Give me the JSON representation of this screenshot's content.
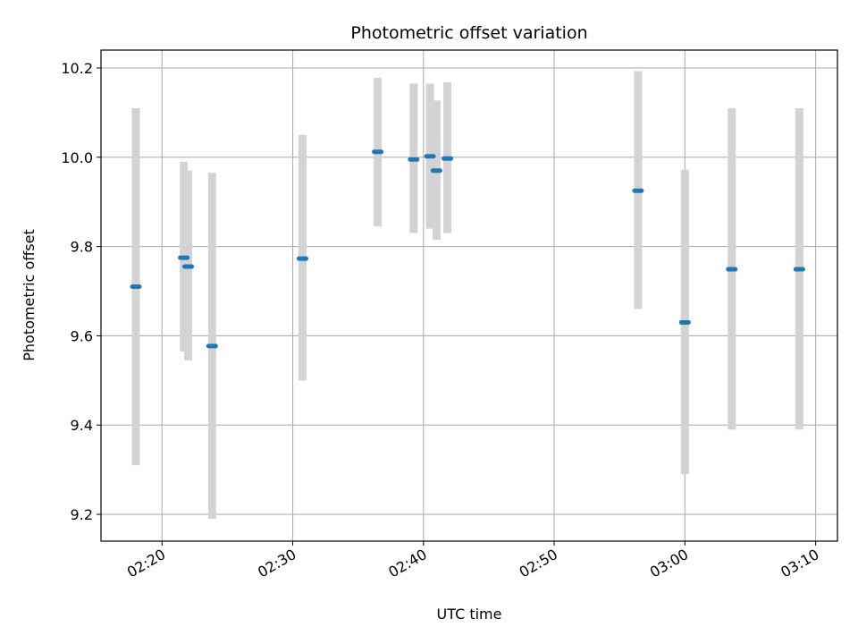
{
  "chart_data": {
    "type": "scatter",
    "title": "Photometric offset variation",
    "xlabel": "UTC time",
    "ylabel": "Photometric offset",
    "x_axis_type": "time",
    "xlim": [
      "02:15:20",
      "03:11:40"
    ],
    "ylim": [
      9.14,
      10.24
    ],
    "x_ticks": [
      "02:20",
      "02:30",
      "02:40",
      "02:50",
      "03:00",
      "03:10"
    ],
    "y_ticks": [
      9.2,
      9.4,
      9.6,
      9.8,
      10.0,
      10.2
    ],
    "y_tick_labels": [
      "9.2",
      "9.4",
      "9.6",
      "9.8",
      "10.0",
      "10.2"
    ],
    "grid": true,
    "marker_color": "#1f77b4",
    "errorbar_color": "#d3d3d3",
    "points": [
      {
        "x": "02:18:00",
        "y": 9.71,
        "ylow": 9.31,
        "yhigh": 10.11
      },
      {
        "x": "02:21:40",
        "y": 9.775,
        "ylow": 9.565,
        "yhigh": 9.99
      },
      {
        "x": "02:22:00",
        "y": 9.755,
        "ylow": 9.545,
        "yhigh": 9.97
      },
      {
        "x": "02:23:50",
        "y": 9.577,
        "ylow": 9.19,
        "yhigh": 9.965
      },
      {
        "x": "02:30:45",
        "y": 9.773,
        "ylow": 9.5,
        "yhigh": 10.05
      },
      {
        "x": "02:36:30",
        "y": 10.012,
        "ylow": 9.845,
        "yhigh": 10.178
      },
      {
        "x": "02:39:15",
        "y": 9.995,
        "ylow": 9.83,
        "yhigh": 10.165
      },
      {
        "x": "02:40:30",
        "y": 10.002,
        "ylow": 9.84,
        "yhigh": 10.165
      },
      {
        "x": "02:41:00",
        "y": 9.97,
        "ylow": 9.815,
        "yhigh": 10.127
      },
      {
        "x": "02:41:50",
        "y": 9.997,
        "ylow": 9.83,
        "yhigh": 10.168
      },
      {
        "x": "02:56:25",
        "y": 9.925,
        "ylow": 9.66,
        "yhigh": 10.193
      },
      {
        "x": "03:00:00",
        "y": 9.63,
        "ylow": 9.29,
        "yhigh": 9.972
      },
      {
        "x": "03:03:35",
        "y": 9.749,
        "ylow": 9.39,
        "yhigh": 10.11
      },
      {
        "x": "03:08:45",
        "y": 9.749,
        "ylow": 9.39,
        "yhigh": 10.11
      }
    ]
  }
}
